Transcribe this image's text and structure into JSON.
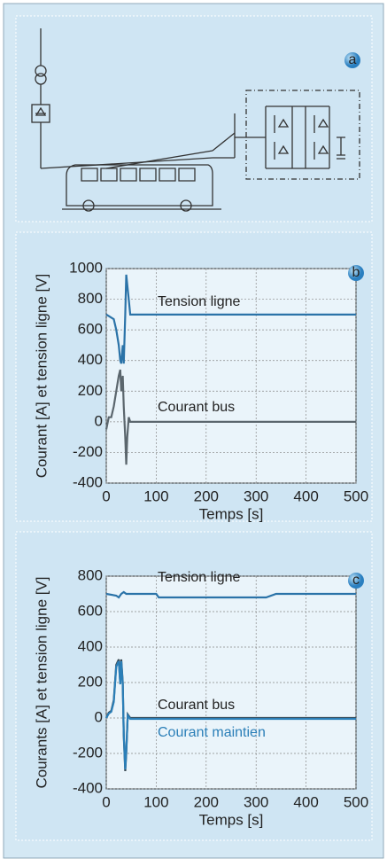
{
  "diagram": {
    "label": "a"
  },
  "chart_data": [
    {
      "type": "line",
      "label": "b",
      "xlabel": "Temps [s]",
      "ylabel": "Courant [A] et tension ligne [V]",
      "xlim": [
        0,
        500
      ],
      "xticks": [
        0,
        100,
        200,
        300,
        400,
        500
      ],
      "ylim": [
        -400,
        1000
      ],
      "yticks": [
        -400,
        -200,
        0,
        200,
        400,
        600,
        800,
        1000
      ],
      "grid": true,
      "series": [
        {
          "name": "Tension ligne",
          "color": "#2b73a8",
          "x": [
            0,
            5,
            10,
            15,
            20,
            25,
            28,
            30,
            33,
            35,
            38,
            40,
            45,
            48,
            50,
            500
          ],
          "values": [
            700,
            690,
            680,
            670,
            600,
            500,
            400,
            380,
            500,
            380,
            700,
            960,
            800,
            700,
            700,
            700
          ]
        },
        {
          "name": "Courant bus",
          "color": "#5b666d",
          "x": [
            0,
            5,
            10,
            15,
            20,
            25,
            28,
            30,
            33,
            35,
            38,
            40,
            42,
            45,
            48,
            500
          ],
          "values": [
            -50,
            30,
            30,
            100,
            200,
            300,
            340,
            200,
            300,
            100,
            -100,
            -280,
            -100,
            30,
            0,
            0
          ]
        }
      ]
    },
    {
      "type": "line",
      "label": "c",
      "xlabel": "Temps [s]",
      "ylabel": "Courants [A] et tension ligne [V]",
      "xlim": [
        0,
        500
      ],
      "xticks": [
        0,
        100,
        200,
        300,
        400,
        500
      ],
      "ylim": [
        -400,
        800
      ],
      "yticks": [
        -400,
        -200,
        0,
        200,
        400,
        600,
        800
      ],
      "grid": true,
      "series": [
        {
          "name": "Tension ligne",
          "color": "#2b73a8",
          "x": [
            0,
            20,
            25,
            30,
            35,
            40,
            100,
            105,
            320,
            340,
            500
          ],
          "values": [
            700,
            690,
            680,
            700,
            710,
            700,
            700,
            680,
            680,
            700,
            700
          ]
        },
        {
          "name": "Courant bus",
          "color": "#3a4a55",
          "x": [
            0,
            5,
            10,
            15,
            20,
            25,
            28,
            30,
            33,
            35,
            38,
            40,
            43,
            48,
            500
          ],
          "values": [
            0,
            30,
            40,
            100,
            300,
            330,
            200,
            330,
            200,
            -100,
            -300,
            -200,
            20,
            0,
            0
          ]
        },
        {
          "name": "Courant maintien",
          "color": "#2b7fb8",
          "x": [
            0,
            5,
            10,
            15,
            20,
            25,
            28,
            30,
            33,
            35,
            38,
            40,
            43,
            48,
            500
          ],
          "values": [
            0,
            25,
            35,
            90,
            290,
            320,
            190,
            320,
            190,
            -90,
            -290,
            -190,
            15,
            -5,
            -5
          ]
        }
      ]
    }
  ]
}
